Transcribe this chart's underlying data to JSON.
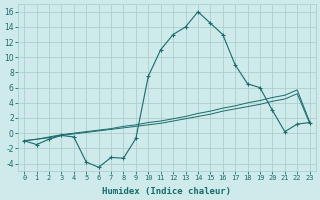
{
  "x": [
    0,
    1,
    2,
    3,
    4,
    5,
    6,
    7,
    8,
    9,
    10,
    11,
    12,
    13,
    14,
    15,
    16,
    17,
    18,
    19,
    20,
    21,
    22,
    23
  ],
  "line1": [
    -1,
    -1.5,
    -0.8,
    -0.3,
    -0.5,
    -3.8,
    -4.5,
    -3.2,
    -3.3,
    -0.7,
    7.5,
    11.0,
    13.0,
    14.0,
    16.0,
    14.5,
    13.0,
    9.0,
    6.5,
    6.0,
    3.0,
    0.2,
    1.2,
    1.4
  ],
  "line2": [
    -1.0,
    -0.8,
    -0.6,
    -0.3,
    -0.1,
    0.1,
    0.3,
    0.5,
    0.7,
    0.9,
    1.1,
    1.3,
    1.6,
    1.9,
    2.2,
    2.5,
    2.9,
    3.2,
    3.5,
    3.8,
    4.2,
    4.5,
    5.2,
    1.3
  ],
  "line3": [
    -1.0,
    -0.8,
    -0.5,
    -0.2,
    0.0,
    0.2,
    0.4,
    0.6,
    0.9,
    1.1,
    1.4,
    1.6,
    1.9,
    2.2,
    2.6,
    2.9,
    3.3,
    3.6,
    4.0,
    4.3,
    4.7,
    5.0,
    5.7,
    1.5
  ],
  "line_color": "#1a6b6b",
  "bg_color": "#ceeaea",
  "grid_color": "#aecece",
  "xlabel": "Humidex (Indice chaleur)",
  "ylim": [
    -5,
    17
  ],
  "xlim": [
    -0.5,
    23.5
  ],
  "yticks": [
    -4,
    -2,
    0,
    2,
    4,
    6,
    8,
    10,
    12,
    14,
    16
  ],
  "xticks": [
    0,
    1,
    2,
    3,
    4,
    5,
    6,
    7,
    8,
    9,
    10,
    11,
    12,
    13,
    14,
    15,
    16,
    17,
    18,
    19,
    20,
    21,
    22,
    23
  ]
}
